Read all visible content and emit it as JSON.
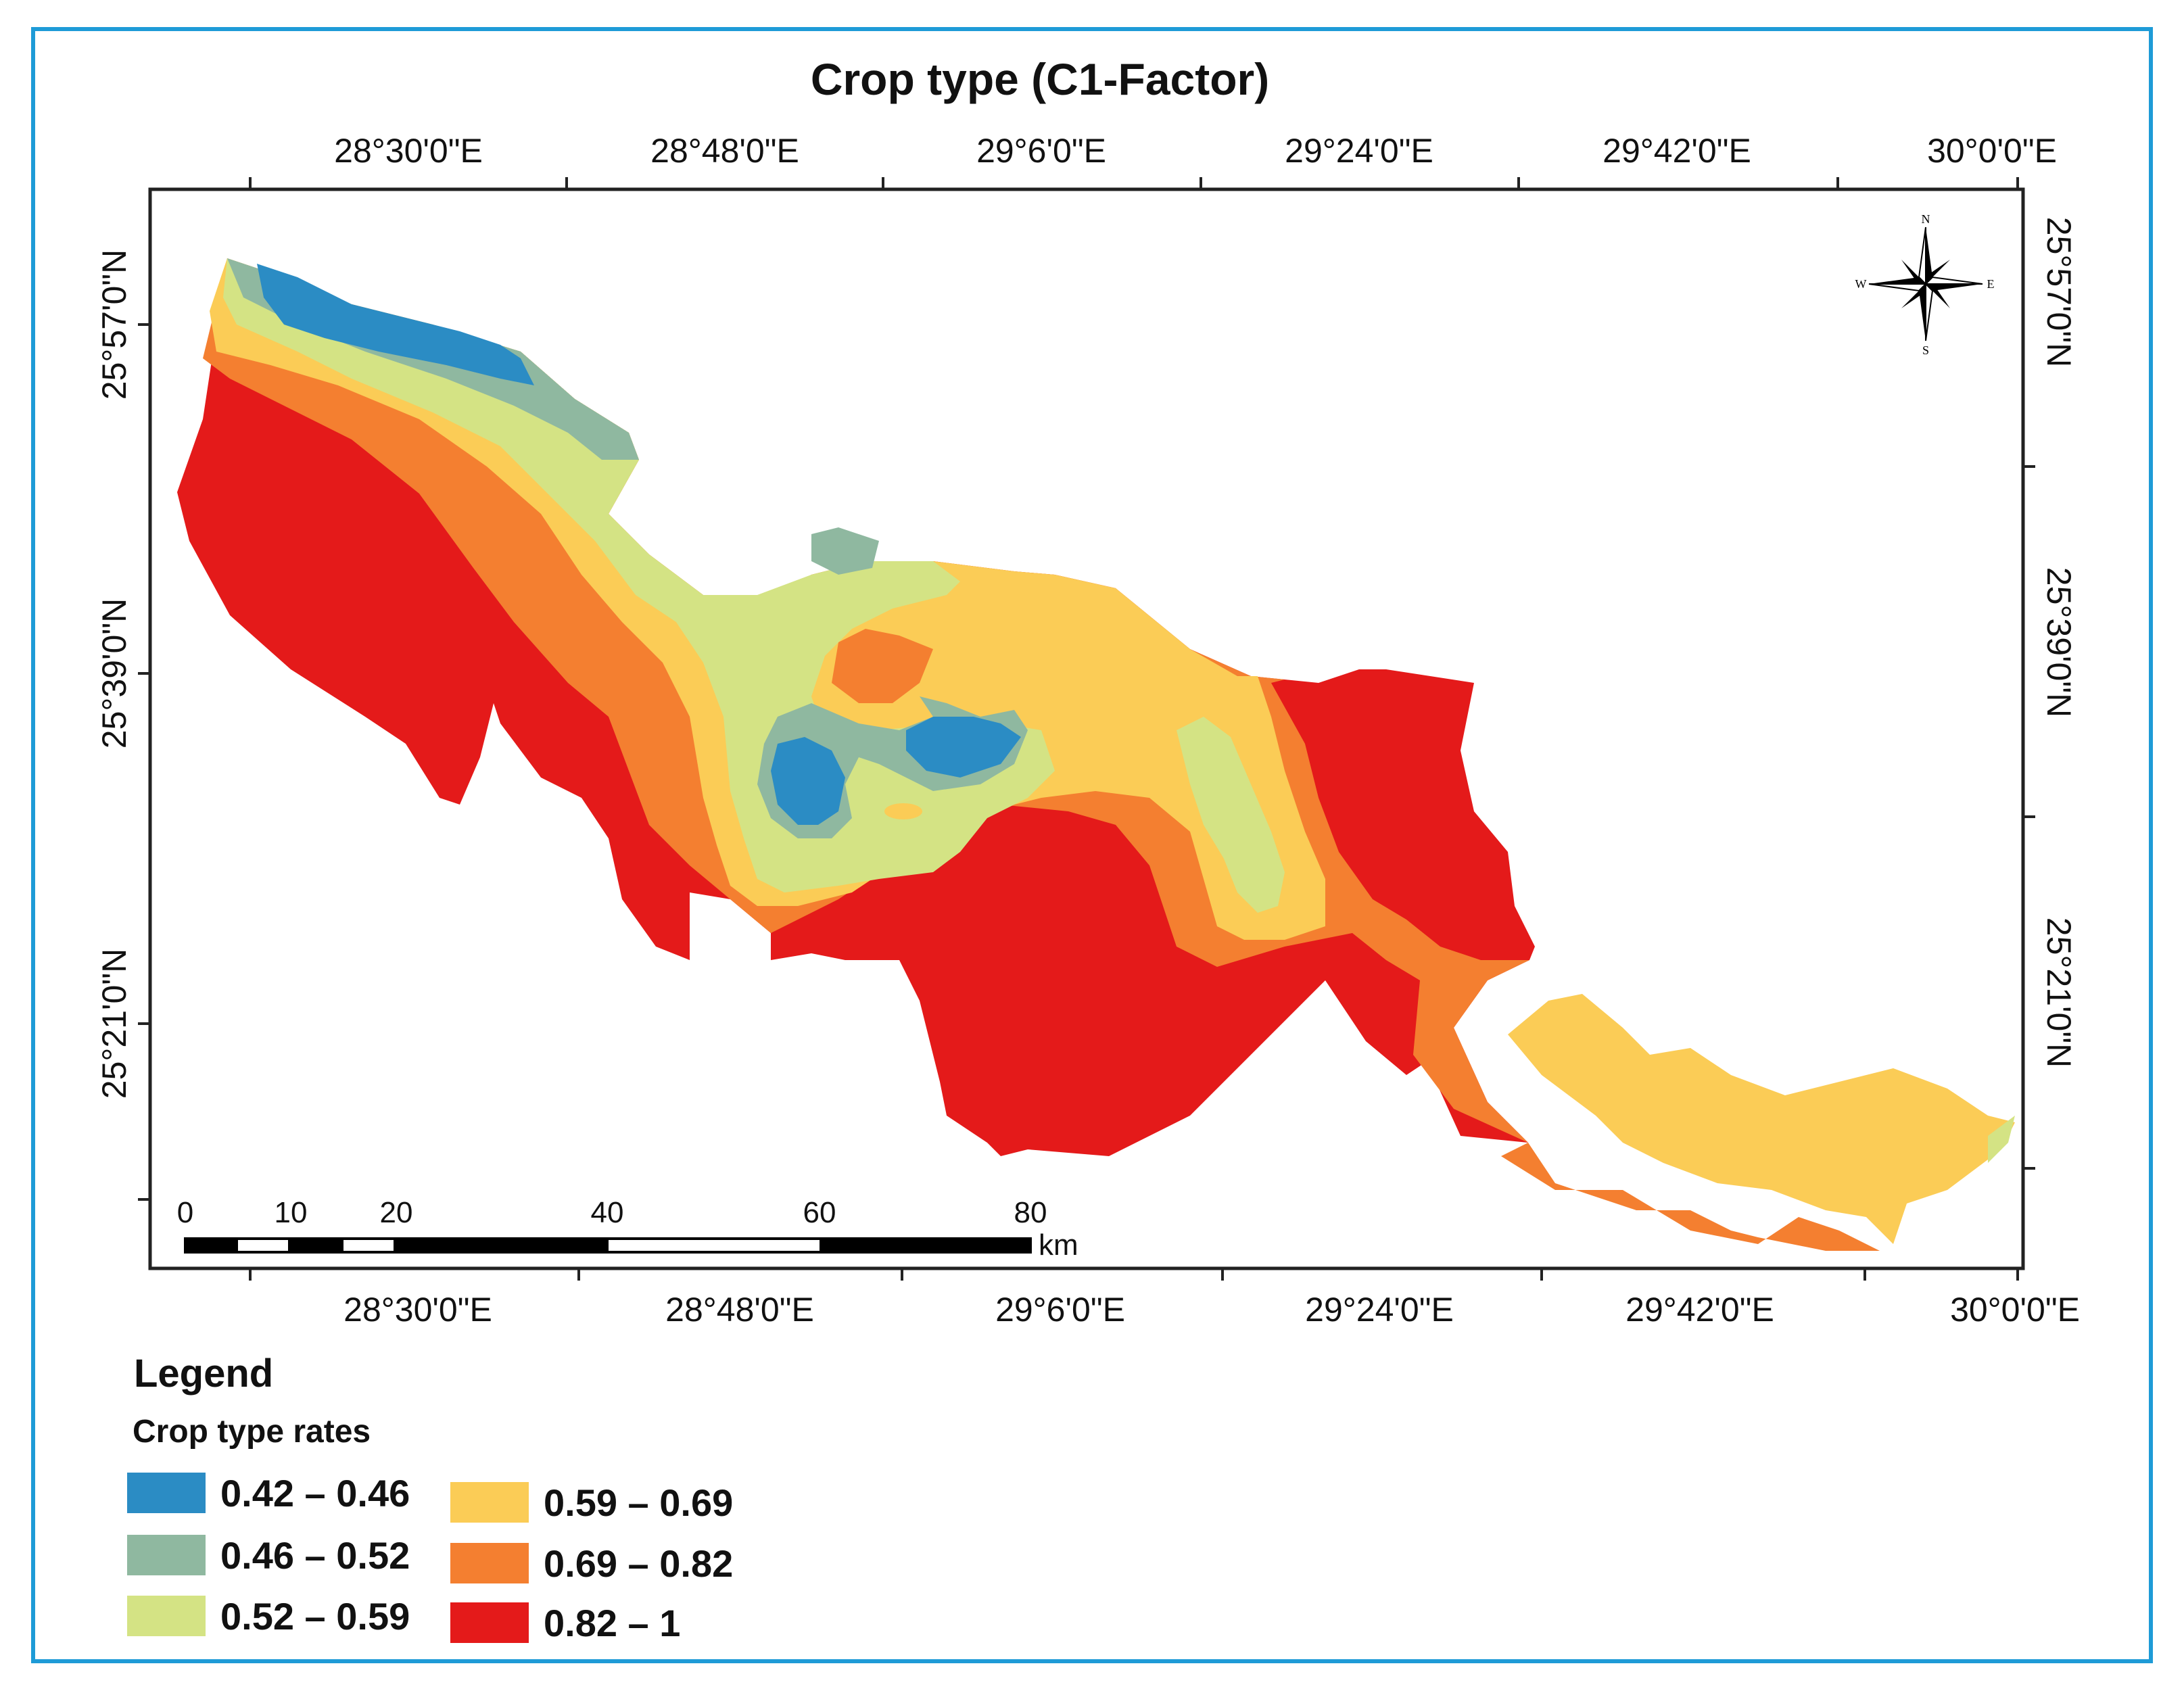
{
  "title": "Crop type (C1-Factor)",
  "longitude_labels_top": [
    "28°30'0\"E",
    "28°48'0\"E",
    "29°6'0\"E",
    "29°24'0\"E",
    "29°42'0\"E",
    "30°0'0\"E"
  ],
  "longitude_labels_bottom": [
    "28°30'0\"E",
    "28°48'0\"E",
    "29°6'0\"E",
    "29°24'0\"E",
    "29°42'0\"E",
    "30°0'0\"E"
  ],
  "latitude_labels_left": [
    "25°57'0\"N",
    "25°39'0\"N",
    "25°21'0\"N"
  ],
  "latitude_labels_right": [
    "25°57'0\"N",
    "25°39'0\"N",
    "25°21'0\"N"
  ],
  "scale_bar": {
    "ticks": [
      "0",
      "10",
      "20",
      "40",
      "60",
      "80"
    ],
    "unit": "km"
  },
  "north_arrow": {
    "n": "N",
    "s": "S",
    "e": "E",
    "w": "W",
    "icon": "compass-rose-icon"
  },
  "legend": {
    "title": "Legend",
    "subtitle": "Crop type rates",
    "items": [
      {
        "label": "0.42 – 0.46",
        "color": "#2b8cc4"
      },
      {
        "label": "0.46 – 0.52",
        "color": "#8fb8a0"
      },
      {
        "label": "0.52 – 0.59",
        "color": "#d4e384"
      },
      {
        "label": "0.59 – 0.69",
        "color": "#fbcc56"
      },
      {
        "label": "0.69 – 0.82",
        "color": "#f47f30"
      },
      {
        "label": "0.82 – 1",
        "color": "#e41a1a"
      }
    ]
  },
  "colors": {
    "frame": "#1e9bd7",
    "neatline": "#222222"
  }
}
